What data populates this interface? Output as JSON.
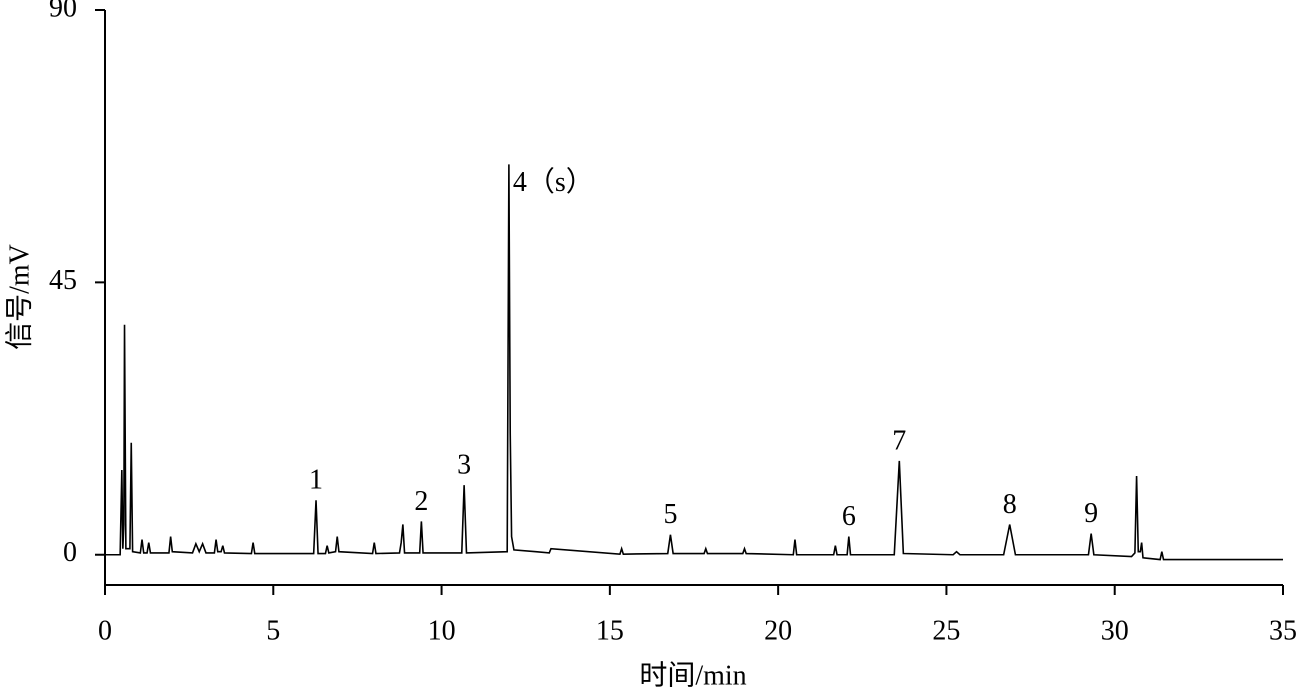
{
  "chart_data": {
    "type": "line",
    "xlabel": "时间/min",
    "ylabel": "信号/mV",
    "xlim": [
      0,
      35
    ],
    "ylim": [
      -5,
      90
    ],
    "xticks": [
      0,
      5,
      10,
      15,
      20,
      25,
      30,
      35
    ],
    "yticks": [
      0,
      45,
      90
    ],
    "series": [
      {
        "color": "#000000",
        "x": [
          0,
          0.45,
          0.5,
          0.53,
          0.56,
          0.58,
          0.62,
          0.74,
          0.78,
          0.82,
          1.05,
          1.1,
          1.15,
          1.25,
          1.3,
          1.35,
          1.9,
          1.95,
          2.0,
          2.6,
          2.7,
          2.8,
          2.9,
          3.0,
          3.25,
          3.3,
          3.35,
          3.45,
          3.5,
          3.55,
          4.35,
          4.4,
          4.45,
          6.2,
          6.27,
          6.33,
          6.55,
          6.6,
          6.65,
          6.85,
          6.9,
          6.95,
          7.95,
          8.0,
          8.05,
          8.75,
          8.8,
          8.85,
          8.9,
          9.35,
          9.4,
          9.45,
          10.6,
          10.67,
          10.74,
          11.95,
          12.0,
          12.04,
          12.08,
          12.15,
          12.8,
          13.2,
          13.25,
          15.3,
          15.35,
          15.4,
          16.72,
          16.8,
          16.88,
          17.8,
          17.85,
          17.9,
          18.95,
          19.0,
          19.05,
          20.45,
          20.5,
          20.55,
          21.65,
          21.7,
          21.75,
          22.05,
          22.1,
          22.15,
          23.45,
          23.6,
          23.72,
          25.2,
          25.3,
          25.4,
          26.7,
          26.88,
          27.05,
          29.22,
          29.3,
          29.38,
          30.5,
          30.6,
          30.65,
          30.7,
          30.76,
          30.8,
          30.84,
          31.35,
          31.4,
          31.45,
          32,
          35
        ],
        "values": [
          0,
          0,
          14,
          1,
          5,
          38,
          1,
          1,
          18.5,
          0.5,
          0.3,
          2.5,
          0.3,
          0.3,
          2,
          0.3,
          0.3,
          3,
          0.5,
          0.3,
          1.8,
          0.5,
          1.8,
          0.3,
          0.3,
          2.5,
          0.5,
          0.5,
          1.5,
          0.3,
          0.2,
          2,
          0.2,
          0.2,
          9,
          0.2,
          0.2,
          1.5,
          0.3,
          0.5,
          3,
          0.5,
          0.2,
          2,
          0.2,
          0.3,
          2,
          5,
          0.3,
          0.3,
          5.5,
          0.3,
          0.3,
          11.5,
          0.3,
          0.5,
          64.5,
          20,
          3,
          0.8,
          0.5,
          0.3,
          1,
          0.1,
          1,
          0.1,
          0.2,
          3.3,
          0.2,
          0.2,
          1,
          0.2,
          0.2,
          1,
          0.2,
          0,
          2.5,
          0,
          0,
          1.5,
          0,
          0,
          3,
          0,
          0,
          15.5,
          0.2,
          0,
          0.5,
          0,
          0,
          5,
          0,
          0,
          3.5,
          0,
          -0.3,
          0.3,
          13,
          0.5,
          0.5,
          2,
          -0.5,
          -0.8,
          0.5,
          -0.8,
          -0.8,
          -0.8
        ]
      }
    ],
    "annotations": [
      {
        "text": "1",
        "x": 6.27,
        "y": 9
      },
      {
        "text": "2",
        "x": 9.4,
        "y": 5.5
      },
      {
        "text": "3",
        "x": 10.67,
        "y": 11.5
      },
      {
        "text": "4（s）",
        "x": 12.0,
        "y": 64.5,
        "position": "right"
      },
      {
        "text": "5",
        "x": 16.8,
        "y": 3.3
      },
      {
        "text": "6",
        "x": 22.1,
        "y": 3
      },
      {
        "text": "7",
        "x": 23.6,
        "y": 15.5
      },
      {
        "text": "8",
        "x": 26.88,
        "y": 5
      },
      {
        "text": "9",
        "x": 29.3,
        "y": 3.5
      }
    ]
  }
}
